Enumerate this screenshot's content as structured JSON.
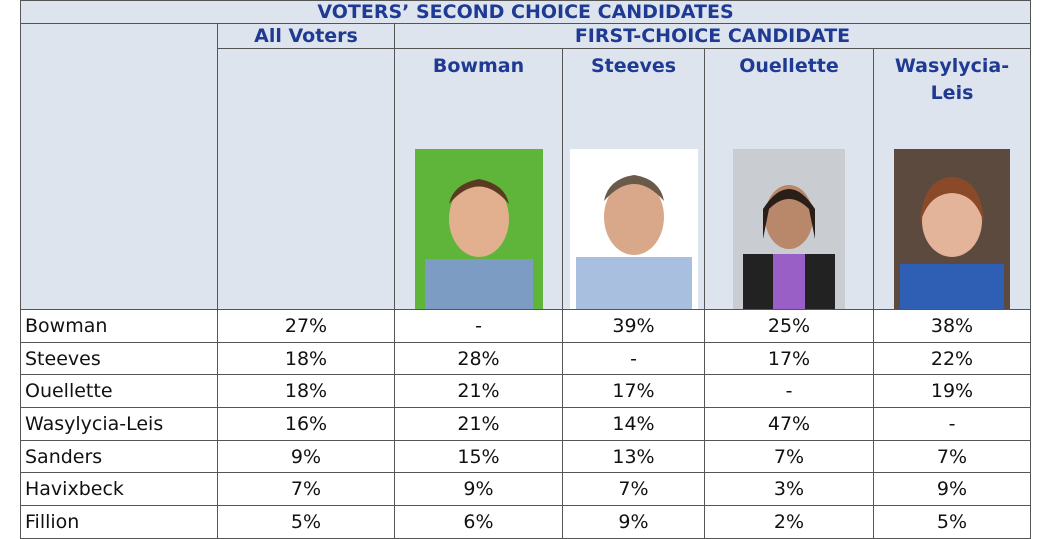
{
  "title": "VOTERS’ SECOND CHOICE CANDIDATES",
  "header": {
    "all_voters": "All Voters",
    "first_choice": "FIRST-CHOICE CANDIDATE",
    "candidates": [
      "Bowman",
      "Steeves",
      "Ouellette",
      "Wasylycia-Leis"
    ]
  },
  "table": {
    "rows": [
      [
        "Bowman",
        "27%",
        "-",
        "39%",
        "25%",
        "38%"
      ],
      [
        "Steeves",
        "18%",
        "28%",
        "-",
        "17%",
        "22%"
      ],
      [
        "Ouellette",
        "18%",
        "21%",
        "17%",
        "-",
        "19%"
      ],
      [
        "Wasylycia-Leis",
        "16%",
        "21%",
        "14%",
        "47%",
        "-"
      ],
      [
        "Sanders",
        "9%",
        "15%",
        "13%",
        "7%",
        "7%"
      ],
      [
        "Havixbeck",
        "7%",
        "9%",
        "7%",
        "3%",
        "9%"
      ],
      [
        "Fillion",
        "5%",
        "6%",
        "9%",
        "2%",
        "5%"
      ]
    ]
  }
}
